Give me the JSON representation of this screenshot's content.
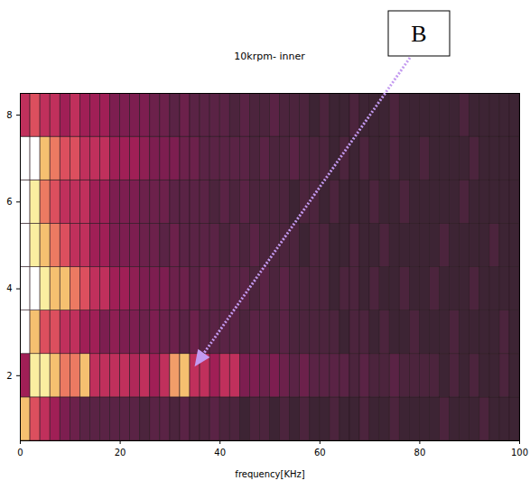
{
  "chart_data": {
    "type": "heatmap",
    "title": "10krpm- inner",
    "x_label": "frequency[KHz]",
    "xlim": [
      0,
      100
    ],
    "xticks": [
      0,
      20,
      40,
      60,
      80,
      100
    ],
    "ylim": [
      0.5,
      8.5
    ],
    "yticks": [
      2,
      4,
      6,
      8
    ],
    "bins": [
      0,
      2,
      4,
      6,
      8,
      10,
      12,
      14,
      16,
      18,
      20,
      22,
      24,
      26,
      28,
      30,
      32,
      34,
      36,
      38,
      40,
      42,
      44,
      46,
      48,
      50,
      52,
      54,
      56,
      58,
      60,
      62,
      64,
      66,
      68,
      70,
      72,
      74,
      76,
      78,
      80,
      82,
      84,
      86,
      88,
      90,
      92,
      94,
      96,
      98,
      100
    ],
    "y_bins": [
      0.5,
      1.5,
      2.5,
      3.5,
      4.5,
      5.5,
      6.5,
      7.5,
      8.5
    ],
    "value_range": [
      0,
      10
    ],
    "cells": [
      [
        8,
        6,
        5,
        4,
        3,
        2.5,
        2,
        2,
        2,
        2,
        2,
        2,
        1.5,
        2,
        2,
        1.5,
        2,
        1.5,
        1.5,
        2,
        1.5,
        1.5,
        1,
        1.5,
        1.5,
        1,
        1.5,
        1,
        1.5,
        1,
        1,
        1.5,
        1,
        1,
        1.5,
        1,
        1,
        1.5,
        1,
        1,
        1,
        1,
        1.5,
        1,
        1,
        1,
        1.5,
        1,
        1,
        1
      ],
      [
        4,
        9,
        9,
        8,
        7,
        7,
        8,
        5,
        5,
        5,
        5,
        4.5,
        5,
        4,
        5,
        7.5,
        8,
        5,
        5,
        4,
        5,
        5,
        3,
        3,
        2.5,
        3,
        2.5,
        2,
        2.5,
        2,
        2,
        2,
        2,
        1.5,
        2,
        1.5,
        1.5,
        2,
        1.5,
        1.5,
        1.5,
        1.5,
        1,
        1.5,
        1,
        1.5,
        1,
        1,
        1.5,
        1
      ],
      [
        10,
        8,
        6,
        6,
        5,
        5,
        4,
        4,
        3,
        3.5,
        3,
        3,
        2.5,
        3,
        2.5,
        2.5,
        2,
        2.5,
        2,
        2,
        2,
        2,
        1.5,
        2,
        2,
        1.5,
        2,
        1.5,
        1.5,
        1.5,
        1.5,
        1.5,
        1,
        1.5,
        1.5,
        1,
        1.5,
        1,
        1,
        1.5,
        1,
        1,
        1,
        1.5,
        1,
        1,
        1,
        1,
        1.5,
        1
      ],
      [
        10,
        10,
        9,
        8,
        8,
        7,
        6,
        5,
        5,
        4,
        4,
        3.5,
        3,
        3,
        3,
        2.5,
        2.5,
        2,
        2.5,
        2,
        2,
        2,
        2,
        1.5,
        2,
        1.5,
        2,
        1.5,
        1.5,
        1.5,
        1.5,
        1,
        1.5,
        1.5,
        1,
        1.5,
        1,
        1,
        1.5,
        1,
        1,
        1.5,
        1,
        1,
        1,
        1.5,
        1,
        1,
        1,
        1
      ],
      [
        10,
        9,
        8,
        7,
        6,
        5,
        5,
        4,
        4,
        3,
        3,
        3,
        2.5,
        2.5,
        2,
        2.5,
        2,
        2,
        2,
        2,
        1.5,
        2,
        1.5,
        2,
        1.5,
        1.5,
        1.5,
        1.5,
        1,
        1.5,
        1.5,
        1,
        1,
        1.5,
        1,
        1,
        1.5,
        1,
        1,
        1,
        1,
        1,
        1.5,
        1,
        1,
        1,
        1,
        1.5,
        1,
        1
      ],
      [
        10,
        9,
        7,
        6,
        5,
        5,
        5,
        4,
        4,
        3,
        3,
        3,
        2.5,
        2.5,
        2.5,
        2,
        2,
        2,
        2,
        1.5,
        2,
        1.5,
        2,
        1.5,
        1.5,
        1.5,
        1.5,
        1,
        1.5,
        1.5,
        1,
        1.5,
        1,
        1,
        1,
        1.5,
        1,
        1,
        1.5,
        1,
        1,
        1,
        1,
        1,
        1.5,
        1,
        1,
        1,
        1,
        1
      ],
      [
        10,
        10,
        8,
        7,
        6,
        6,
        5,
        5,
        5,
        4,
        4,
        4,
        3.5,
        3,
        3,
        3,
        2.5,
        2.5,
        2,
        2,
        2,
        2,
        2,
        1.5,
        2,
        1.5,
        1.5,
        2,
        1.5,
        1.5,
        1.5,
        1,
        1.5,
        1,
        1.5,
        1,
        1,
        1.5,
        1,
        1,
        1.5,
        1,
        1,
        1,
        1,
        1.5,
        1,
        1,
        1,
        1
      ],
      [
        5,
        6,
        5,
        5,
        4,
        5,
        4,
        4,
        4,
        3,
        3,
        3,
        3,
        2.5,
        2.5,
        2,
        2.5,
        2,
        2,
        2,
        2,
        1.5,
        2,
        1.5,
        1.5,
        2,
        1.5,
        1.5,
        1.5,
        1,
        1.5,
        1,
        1,
        1.5,
        1,
        1,
        1,
        1.5,
        1,
        1,
        1,
        1,
        1,
        1,
        1.5,
        1,
        1,
        1,
        1,
        1
      ]
    ],
    "annotations": [
      {
        "text": "B",
        "x": 35,
        "y": 2.2
      }
    ]
  }
}
